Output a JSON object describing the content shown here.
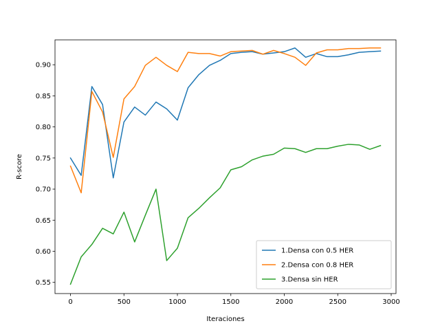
{
  "chart_data": {
    "type": "line",
    "xlabel": "Iteraciones",
    "ylabel": "R-score",
    "xlim": [
      -145,
      3045
    ],
    "ylim": [
      0.532,
      0.94
    ],
    "x_ticks": [
      0,
      500,
      1000,
      1500,
      2000,
      2500,
      3000
    ],
    "x_tick_labels": [
      "0",
      "500",
      "1000",
      "1500",
      "2000",
      "2500",
      "3000"
    ],
    "y_ticks": [
      0.55,
      0.6,
      0.65,
      0.7,
      0.75,
      0.8,
      0.85,
      0.9
    ],
    "y_tick_labels": [
      "0.55",
      "0.60",
      "0.65",
      "0.70",
      "0.75",
      "0.80",
      "0.85",
      "0.90"
    ],
    "grid": false,
    "legend_position": "lower-right",
    "x": [
      0,
      100,
      200,
      300,
      400,
      500,
      600,
      700,
      800,
      900,
      1000,
      1100,
      1200,
      1300,
      1400,
      1500,
      1600,
      1700,
      1800,
      1900,
      2000,
      2100,
      2200,
      2300,
      2400,
      2500,
      2600,
      2700,
      2800,
      2900
    ],
    "series": [
      {
        "name": "1.Densa con 0.5 HER",
        "color": "#1f77b4",
        "values": [
          0.75,
          0.722,
          0.865,
          0.836,
          0.718,
          0.808,
          0.832,
          0.819,
          0.84,
          0.829,
          0.811,
          0.863,
          0.884,
          0.899,
          0.907,
          0.918,
          0.92,
          0.921,
          0.917,
          0.919,
          0.921,
          0.927,
          0.912,
          0.918,
          0.913,
          0.913,
          0.916,
          0.92,
          0.921,
          0.922
        ]
      },
      {
        "name": "2.Densa con 0.8 HER",
        "color": "#ff7f0e",
        "values": [
          0.737,
          0.694,
          0.857,
          0.824,
          0.751,
          0.845,
          0.865,
          0.899,
          0.912,
          0.899,
          0.889,
          0.92,
          0.918,
          0.918,
          0.914,
          0.921,
          0.922,
          0.923,
          0.917,
          0.923,
          0.918,
          0.912,
          0.899,
          0.919,
          0.924,
          0.924,
          0.926,
          0.926,
          0.927,
          0.927
        ]
      },
      {
        "name": "3.Densa sin HER",
        "color": "#2ca02c",
        "values": [
          0.547,
          0.591,
          0.611,
          0.637,
          0.628,
          0.663,
          0.615,
          0.658,
          0.7,
          0.585,
          0.605,
          0.654,
          0.669,
          0.686,
          0.702,
          0.731,
          0.736,
          0.747,
          0.753,
          0.756,
          0.766,
          0.765,
          0.759,
          0.765,
          0.765,
          0.769,
          0.772,
          0.771,
          0.764,
          0.77
        ]
      }
    ]
  }
}
